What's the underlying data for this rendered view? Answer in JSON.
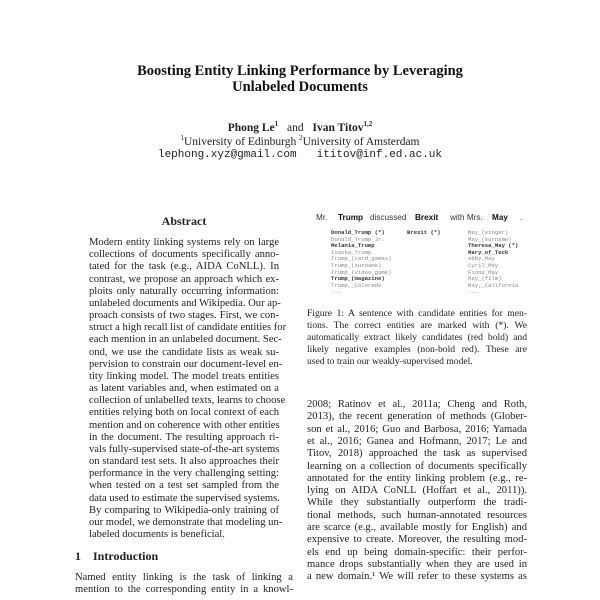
{
  "title": [
    "Boosting Entity Linking Performance by Leveraging",
    "Unlabeled Documents"
  ],
  "authors": {
    "names": "Phong Le",
    "names_sup": "1",
    "and": "and",
    "name2": "Ivan Titov",
    "name2_sup": "1,2",
    "affil1_sup": "1",
    "affil1": "University of Edinburgh",
    "affil2_sup": "2",
    "affil2": "University of Amsterdam",
    "email1": "lephong.xyz@gmail.com",
    "email2": "ititov@inf.ed.ac.uk"
  },
  "abstract": {
    "heading": "Abstract",
    "lines": [
      "Modern entity linking systems rely on large",
      "collections of documents specifically anno-",
      "tated for the task (e.g., AIDA CoNLL). In",
      "contrast, we propose an approach which ex-",
      "ploits only naturally occurring information:",
      "unlabeled documents and Wikipedia. Our ap-",
      "proach consists of two stages. First, we con-",
      "struct a high recall list of candidate entities for",
      "each mention in an unlabeled document. Sec-",
      "ond, we use the candidate lists as weak su-",
      "pervision to constrain our document-level en-",
      "tity linking model. The model treats entities",
      "as latent variables and, when estimated on a",
      "collection of unlabelled texts, learns to choose",
      "entities relying both on local context of each",
      "mention and on coherence with other entities",
      "in the document. The resulting approach ri-",
      "vals fully-supervised state-of-the-art systems",
      "on standard test sets. It also approaches their",
      "performance in the very challenging setting:",
      "when tested on a test set sampled from the",
      "data used to estimate the supervised systems.",
      "By comparing to Wikipedia-only training of",
      "our model, we demonstrate that modeling un-",
      "labeled documents is beneficial."
    ]
  },
  "intro": {
    "heading_num": "1",
    "heading": "Introduction",
    "lines": [
      "Named entity linking is the task of linking a",
      "mention to the corresponding entity in a knowl-"
    ]
  },
  "figure": {
    "sentence": [
      {
        "text": "Mr.",
        "bold": false
      },
      {
        "text": "Trump",
        "bold": true
      },
      {
        "text": "discussed",
        "bold": false
      },
      {
        "text": "Brexit",
        "bold": true
      },
      {
        "text": "with Mrs.",
        "bold": false
      },
      {
        "text": "May",
        "bold": true
      },
      {
        "text": ".",
        "bold": false
      }
    ],
    "candidates": [
      [
        {
          "text": "Donald_Trump (*)",
          "bold": true
        },
        {
          "text": "Donald_Trump_Jr.",
          "bold": false
        },
        {
          "text": "Melania_Trump",
          "bold": true
        },
        {
          "text": "Ivanka_Trump",
          "bold": false
        },
        {
          "text": "Trump_(card_games)",
          "bold": false
        },
        {
          "text": "Trump_(surname)",
          "bold": false
        },
        {
          "text": "Trump_(video_game)",
          "bold": false
        },
        {
          "text": "Trump_(magazine)",
          "bold": true
        },
        {
          "text": "Trump,_Colorado",
          "bold": false
        },
        {
          "text": "...",
          "bold": false
        }
      ],
      [
        {
          "text": "Brexit (*)",
          "bold": true
        }
      ],
      [
        {
          "text": "May_(singer)",
          "bold": false
        },
        {
          "text": "May_(surname)",
          "bold": false
        },
        {
          "text": "Theresa_May (*)",
          "bold": true
        },
        {
          "text": "Mary_of_Teck",
          "bold": true
        },
        {
          "text": "Abby_May",
          "bold": false
        },
        {
          "text": "Cyril_May",
          "bold": false
        },
        {
          "text": "Fiona_May",
          "bold": false
        },
        {
          "text": "May_(film)",
          "bold": false
        },
        {
          "text": "May,_California",
          "bold": false
        },
        {
          "text": "...",
          "bold": false
        }
      ]
    ],
    "caption": [
      "Figure 1: A sentence with candidate entities for men-",
      "tions. The correct entities are marked with (*). We",
      "automatically extract likely candidates (red bold) and",
      "likely negative examples (non-bold red). These are",
      "used to train our weakly-supervised model."
    ]
  },
  "right_text": [
    "2008; Ratinov et al., 2011a; Cheng and Roth,",
    "2013), the recent generation of methods (Glober-",
    "son et al., 2016; Guo and Barbosa, 2016; Yamada",
    "et al., 2016; Ganea and Hofmann, 2017; Le and",
    "Titov, 2018) approached the task as supervised",
    "learning on a collection of documents specifically",
    "annotated for the entity linking problem (e.g., re-",
    "lying on AIDA CoNLL (Hoffart et al., 2011)).",
    "While they substantially outperform the tradi-",
    "tional methods, such human-annotated resources",
    "are scarce (e.g., available mostly for English) and",
    "expensive to create. Moreover, the resulting mod-",
    "els end up being domain-specific: their perfor-",
    "mance drops substantially when they are used in",
    "a new domain.¹ We will refer to these systems as"
  ]
}
